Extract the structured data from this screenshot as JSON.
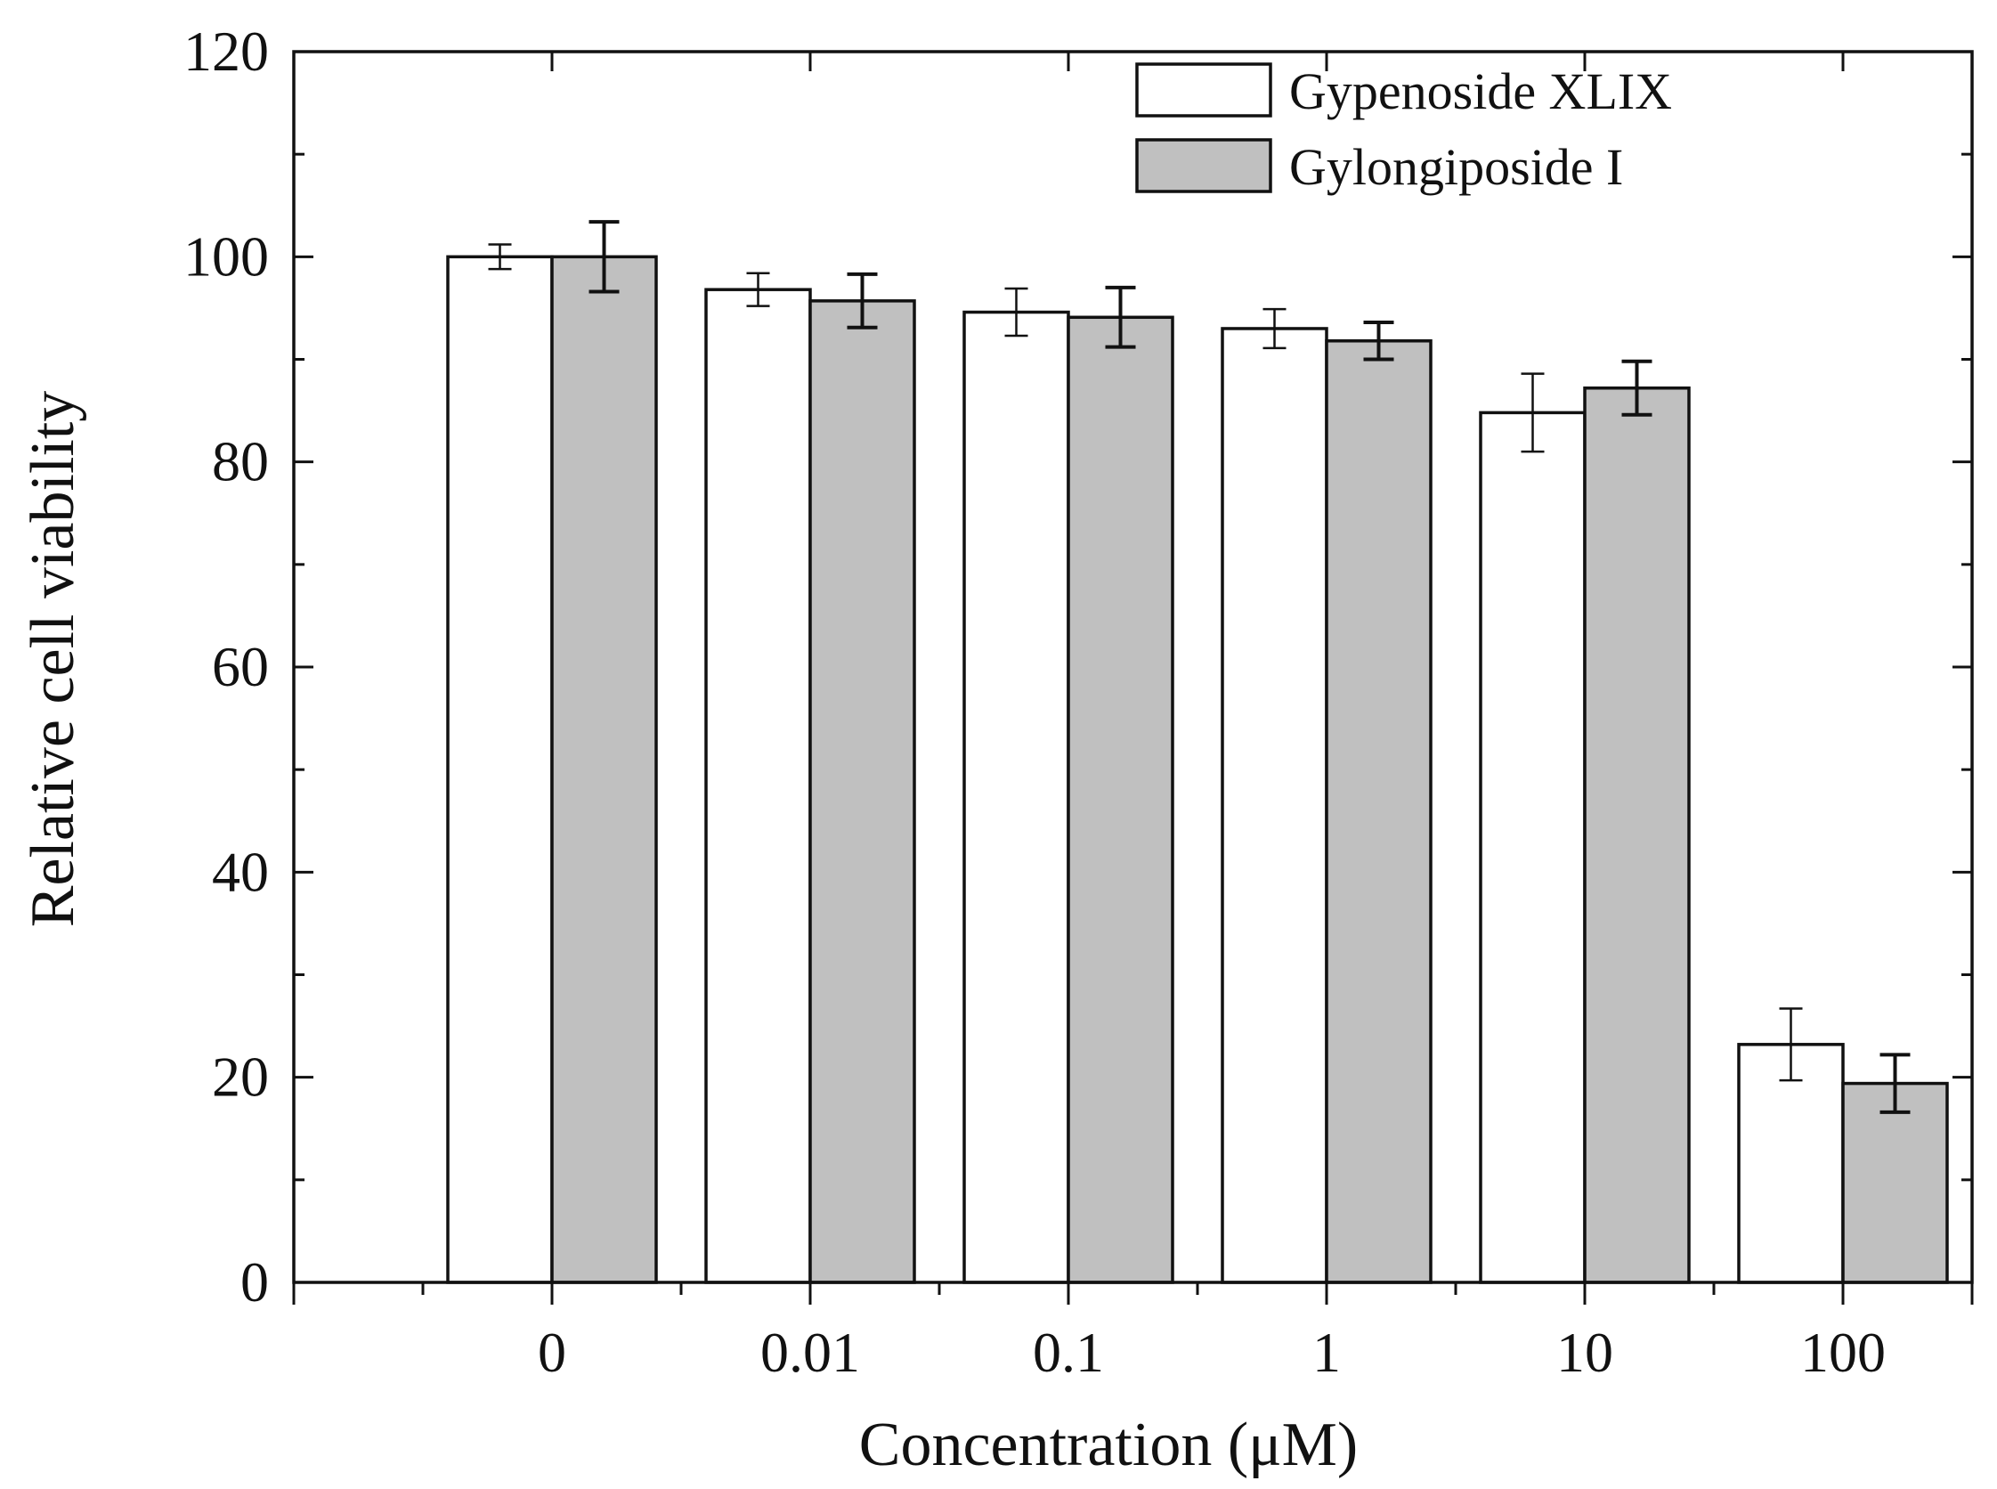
{
  "chart_data": {
    "type": "bar",
    "title": "",
    "xlabel": "Concentration (μM)",
    "ylabel": "Relative cell viability",
    "ylim": [
      0,
      120
    ],
    "yticks": [
      0,
      20,
      40,
      60,
      80,
      100,
      120
    ],
    "ytick_labels": [
      "0",
      "20",
      "40",
      "60",
      "80",
      "100",
      "120"
    ],
    "categories": [
      "0",
      "0.01",
      "0.1",
      "1",
      "10",
      "100"
    ],
    "series": [
      {
        "name": "Gypenoside XLIX",
        "color": "#ffffff",
        "values": [
          100,
          96.8,
          94.6,
          93.0,
          84.8,
          23.2
        ],
        "errors": [
          1.2,
          1.6,
          2.3,
          1.9,
          3.8,
          3.5
        ]
      },
      {
        "name": "Gylongiposide I",
        "color": "#c0c0c0",
        "values": [
          100,
          95.7,
          94.1,
          91.8,
          87.2,
          19.4
        ],
        "errors": [
          3.4,
          2.6,
          2.9,
          1.8,
          2.6,
          2.8
        ]
      }
    ],
    "legend_position": "top-right",
    "grid": false
  }
}
